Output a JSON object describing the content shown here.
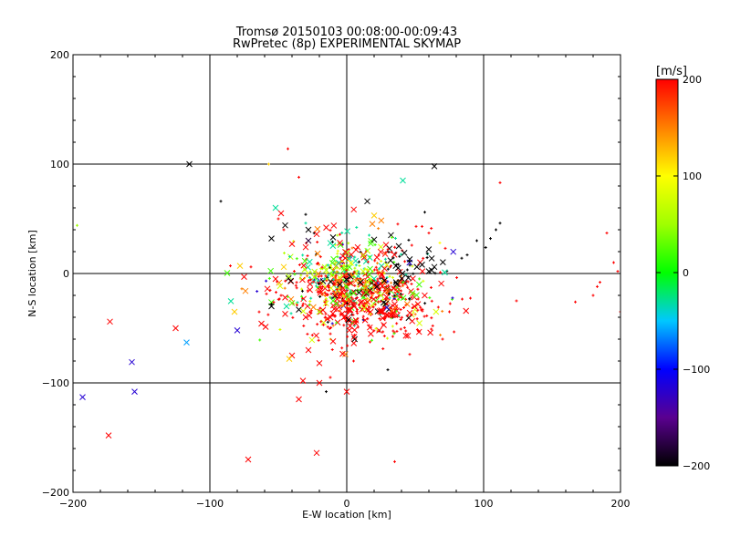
{
  "chart_data": {
    "type": "scatter",
    "title": "Tromsø 20150103 00:08:00-00:09:43",
    "subtitle": "RwPretec (8p) EXPERIMENTAL SKYMAP",
    "xlabel": "E-W location [km]",
    "ylabel": "N-S location [km]",
    "xlim": [
      -200,
      200
    ],
    "ylim": [
      -200,
      200
    ],
    "xticks": [
      "−200",
      "−100",
      "0",
      "100",
      "200"
    ],
    "xtick_values": [
      -200,
      -100,
      0,
      100,
      200
    ],
    "yticks": [
      "−200",
      "−100",
      "0",
      "100",
      "200"
    ],
    "ytick_values": [
      -200,
      -100,
      0,
      100,
      200
    ],
    "grid": true,
    "colorbar": {
      "label": "[m/s]",
      "min": -200,
      "max": 200,
      "ticks": [
        "−200",
        "−100",
        "0",
        "100",
        "200"
      ],
      "tick_values": [
        -200,
        -100,
        0,
        100,
        200
      ]
    },
    "markers": {
      "large": "×",
      "small": "+"
    },
    "large_points": [
      {
        "x": -115,
        "y": 100,
        "v": -200
      },
      {
        "x": 64,
        "y": 98,
        "v": -200
      },
      {
        "x": 41,
        "y": 85,
        "v": -30
      },
      {
        "x": 15,
        "y": 66,
        "v": -200
      },
      {
        "x": -52,
        "y": 60,
        "v": -30
      },
      {
        "x": -48,
        "y": 55,
        "v": 200
      },
      {
        "x": 20,
        "y": 53,
        "v": 120
      },
      {
        "x": -45,
        "y": 44,
        "v": -200
      },
      {
        "x": -28,
        "y": 40,
        "v": -200
      },
      {
        "x": -22,
        "y": 36,
        "v": 200
      },
      {
        "x": -15,
        "y": 42,
        "v": 200
      },
      {
        "x": -10,
        "y": 33,
        "v": -200
      },
      {
        "x": -55,
        "y": 32,
        "v": -200
      },
      {
        "x": -40,
        "y": 27,
        "v": 200
      },
      {
        "x": -30,
        "y": 24,
        "v": 200
      },
      {
        "x": -28,
        "y": 30,
        "v": -180
      },
      {
        "x": -5,
        "y": 28,
        "v": 200
      },
      {
        "x": 8,
        "y": 24,
        "v": 200
      },
      {
        "x": 20,
        "y": 31,
        "v": -200
      },
      {
        "x": 38,
        "y": 25,
        "v": -200
      },
      {
        "x": 32,
        "y": 12,
        "v": -200
      },
      {
        "x": 46,
        "y": 13,
        "v": -200
      },
      {
        "x": 55,
        "y": 8,
        "v": -200
      },
      {
        "x": 45,
        "y": -4,
        "v": -200
      },
      {
        "x": 36,
        "y": -8,
        "v": -200
      },
      {
        "x": 60,
        "y": 2,
        "v": -200
      },
      {
        "x": 64,
        "y": 6,
        "v": -200
      },
      {
        "x": -78,
        "y": 7,
        "v": 120
      },
      {
        "x": -46,
        "y": 6,
        "v": 120
      },
      {
        "x": -75,
        "y": -3,
        "v": 200
      },
      {
        "x": -52,
        "y": -5,
        "v": 200
      },
      {
        "x": -74,
        "y": -16,
        "v": 150
      },
      {
        "x": -58,
        "y": -14,
        "v": 200
      },
      {
        "x": -45,
        "y": -22,
        "v": 200
      },
      {
        "x": -40,
        "y": -27,
        "v": 30
      },
      {
        "x": -44,
        "y": -30,
        "v": -30
      },
      {
        "x": -35,
        "y": -33,
        "v": -200
      },
      {
        "x": -45,
        "y": -37,
        "v": 200
      },
      {
        "x": -30,
        "y": -40,
        "v": 200
      },
      {
        "x": -20,
        "y": -35,
        "v": 60
      },
      {
        "x": -10,
        "y": -25,
        "v": 20
      },
      {
        "x": 5,
        "y": -18,
        "v": 30
      },
      {
        "x": 15,
        "y": -26,
        "v": 200
      },
      {
        "x": 25,
        "y": -20,
        "v": 60
      },
      {
        "x": 35,
        "y": -28,
        "v": 200
      },
      {
        "x": 48,
        "y": -18,
        "v": 30
      },
      {
        "x": 52,
        "y": -28,
        "v": 200
      },
      {
        "x": -5,
        "y": -10,
        "v": -200
      },
      {
        "x": 10,
        "y": -8,
        "v": -200
      },
      {
        "x": 22,
        "y": -12,
        "v": -200
      },
      {
        "x": -15,
        "y": 3,
        "v": 60
      },
      {
        "x": 0,
        "y": 5,
        "v": 40
      },
      {
        "x": 12,
        "y": 2,
        "v": 80
      },
      {
        "x": -2,
        "y": -40,
        "v": 200
      },
      {
        "x": 30,
        "y": -38,
        "v": 200
      },
      {
        "x": -82,
        "y": -35,
        "v": 120
      },
      {
        "x": -80,
        "y": -52,
        "v": -120
      },
      {
        "x": -173,
        "y": -44,
        "v": 200
      },
      {
        "x": -125,
        "y": -50,
        "v": 200
      },
      {
        "x": -117,
        "y": -63,
        "v": -60
      },
      {
        "x": -157,
        "y": -81,
        "v": -120
      },
      {
        "x": -155,
        "y": -108,
        "v": -120
      },
      {
        "x": -193,
        "y": -113,
        "v": -120
      },
      {
        "x": -174,
        "y": -148,
        "v": 200
      },
      {
        "x": -72,
        "y": -170,
        "v": 200
      },
      {
        "x": -22,
        "y": -164,
        "v": 200
      },
      {
        "x": -40,
        "y": -75,
        "v": 200
      },
      {
        "x": -42,
        "y": -78,
        "v": 120
      },
      {
        "x": -32,
        "y": -98,
        "v": 200
      },
      {
        "x": -20,
        "y": -100,
        "v": 200
      },
      {
        "x": -35,
        "y": -115,
        "v": 200
      },
      {
        "x": 0,
        "y": -108,
        "v": 200
      },
      {
        "x": -28,
        "y": -70,
        "v": 200
      },
      {
        "x": -20,
        "y": -82,
        "v": 200
      },
      {
        "x": -10,
        "y": -62,
        "v": 200
      },
      {
        "x": -55,
        "y": -30,
        "v": -200
      }
    ],
    "small_points": [
      {
        "x": -43,
        "y": 114,
        "v": 200
      },
      {
        "x": -57,
        "y": 100,
        "v": 120
      },
      {
        "x": -35,
        "y": 88,
        "v": 200
      },
      {
        "x": -92,
        "y": 66,
        "v": -200
      },
      {
        "x": -197,
        "y": 44,
        "v": 50
      },
      {
        "x": -30,
        "y": 54,
        "v": -200
      },
      {
        "x": -50,
        "y": 50,
        "v": 200
      },
      {
        "x": 57,
        "y": 56,
        "v": -200
      },
      {
        "x": 112,
        "y": 83,
        "v": 200
      },
      {
        "x": 112,
        "y": 46,
        "v": -200
      },
      {
        "x": 109,
        "y": 40,
        "v": -200
      },
      {
        "x": 105,
        "y": 32,
        "v": -200
      },
      {
        "x": 84,
        "y": 14,
        "v": -200
      },
      {
        "x": 190,
        "y": 37,
        "v": 200
      },
      {
        "x": 195,
        "y": 10,
        "v": 200
      },
      {
        "x": 198,
        "y": 2,
        "v": 200
      },
      {
        "x": 185,
        "y": -8,
        "v": 200
      },
      {
        "x": 183,
        "y": -12,
        "v": 200
      },
      {
        "x": 167,
        "y": -26,
        "v": 200
      },
      {
        "x": 124,
        "y": -25,
        "v": 200
      },
      {
        "x": 180,
        "y": -20,
        "v": 200
      },
      {
        "x": 200,
        "y": -35,
        "v": 200
      },
      {
        "x": -85,
        "y": 7,
        "v": 200
      },
      {
        "x": -70,
        "y": 6,
        "v": 200
      },
      {
        "x": -55,
        "y": -28,
        "v": -200
      },
      {
        "x": 70,
        "y": -60,
        "v": 200
      },
      {
        "x": 75,
        "y": -35,
        "v": 200
      },
      {
        "x": 30,
        "y": -88,
        "v": -200
      },
      {
        "x": 35,
        "y": -172,
        "v": 200
      },
      {
        "x": -15,
        "y": -108,
        "v": -200
      },
      {
        "x": -12,
        "y": -95,
        "v": 200
      },
      {
        "x": 5,
        "y": -80,
        "v": 200
      },
      {
        "x": 55,
        "y": 43,
        "v": 200
      },
      {
        "x": 60,
        "y": 37,
        "v": 200
      },
      {
        "x": 68,
        "y": 28,
        "v": 100
      },
      {
        "x": 72,
        "y": 23,
        "v": 200
      },
      {
        "x": 88,
        "y": 17,
        "v": -200
      },
      {
        "x": 95,
        "y": 30,
        "v": -200
      },
      {
        "x": -30,
        "y": 46,
        "v": -30
      },
      {
        "x": -46,
        "y": 40,
        "v": 200
      },
      {
        "x": 33,
        "y": 33,
        "v": 30
      }
    ],
    "cluster": {
      "center": [
        10,
        -15
      ],
      "spread": [
        28,
        22
      ],
      "count": 900,
      "mix": [
        {
          "v": 200,
          "weight": 0.5
        },
        {
          "v": 150,
          "weight": 0.1
        },
        {
          "v": 80,
          "weight": 0.12
        },
        {
          "v": 20,
          "weight": 0.1
        },
        {
          "v": -30,
          "weight": 0.06
        },
        {
          "v": -120,
          "weight": 0.04
        },
        {
          "v": -200,
          "weight": 0.08
        }
      ]
    }
  }
}
